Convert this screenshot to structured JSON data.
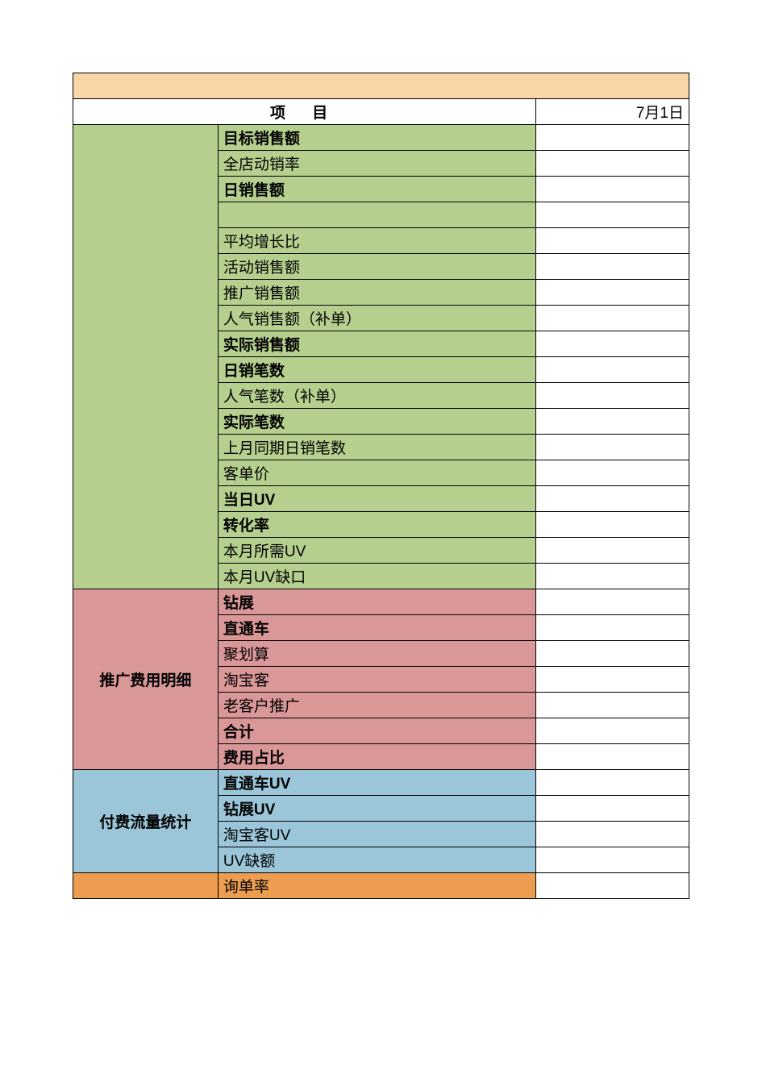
{
  "layout": {
    "banner_color": "#f9d5a7",
    "section_colors": {
      "green": "#b5d08e",
      "pink": "#da9798",
      "blue": "#9bc6d9",
      "orange": "#ed9d4f"
    },
    "header": {
      "project_label": "项 目",
      "date_label": "7月1日"
    }
  },
  "sections": {
    "green": {
      "category_label": "",
      "rows": [
        {
          "label": "目标销售额",
          "bold": true
        },
        {
          "label": "全店动销率",
          "bold": false
        },
        {
          "label": "日销售额",
          "bold": true
        },
        {
          "label": "",
          "bold": false
        },
        {
          "label": "平均增长比",
          "bold": false
        },
        {
          "label": "活动销售额",
          "bold": false
        },
        {
          "label": "推广销售额",
          "bold": false
        },
        {
          "label": "人气销售额（补单）",
          "bold": false
        },
        {
          "label": "实际销售额",
          "bold": true
        },
        {
          "label": "日销笔数",
          "bold": true
        },
        {
          "label": "人气笔数（补单）",
          "bold": false
        },
        {
          "label": "实际笔数",
          "bold": true
        },
        {
          "label": "上月同期日销笔数",
          "bold": false
        },
        {
          "label": "客单价",
          "bold": false
        },
        {
          "label": "当日UV",
          "bold": true
        },
        {
          "label": "转化率",
          "bold": true
        },
        {
          "label": "本月所需UV",
          "bold": false
        },
        {
          "label": "本月UV缺口",
          "bold": false
        }
      ]
    },
    "pink": {
      "category_label": "推广费用明细",
      "rows": [
        {
          "label": "钻展",
          "bold": true
        },
        {
          "label": "直通车",
          "bold": true
        },
        {
          "label": "聚划算",
          "bold": false
        },
        {
          "label": "淘宝客",
          "bold": false
        },
        {
          "label": "老客户推广",
          "bold": false
        },
        {
          "label": "合计",
          "bold": true
        },
        {
          "label": "费用占比",
          "bold": true
        }
      ]
    },
    "blue": {
      "category_label": "付费流量统计",
      "rows": [
        {
          "label": "直通车UV",
          "bold": true
        },
        {
          "label": "钻展UV",
          "bold": true
        },
        {
          "label": "淘宝客UV",
          "bold": false
        },
        {
          "label": "UV缺额",
          "bold": false
        }
      ]
    },
    "orange": {
      "category_label": "",
      "rows": [
        {
          "label": "询单率",
          "bold": false
        }
      ]
    }
  }
}
